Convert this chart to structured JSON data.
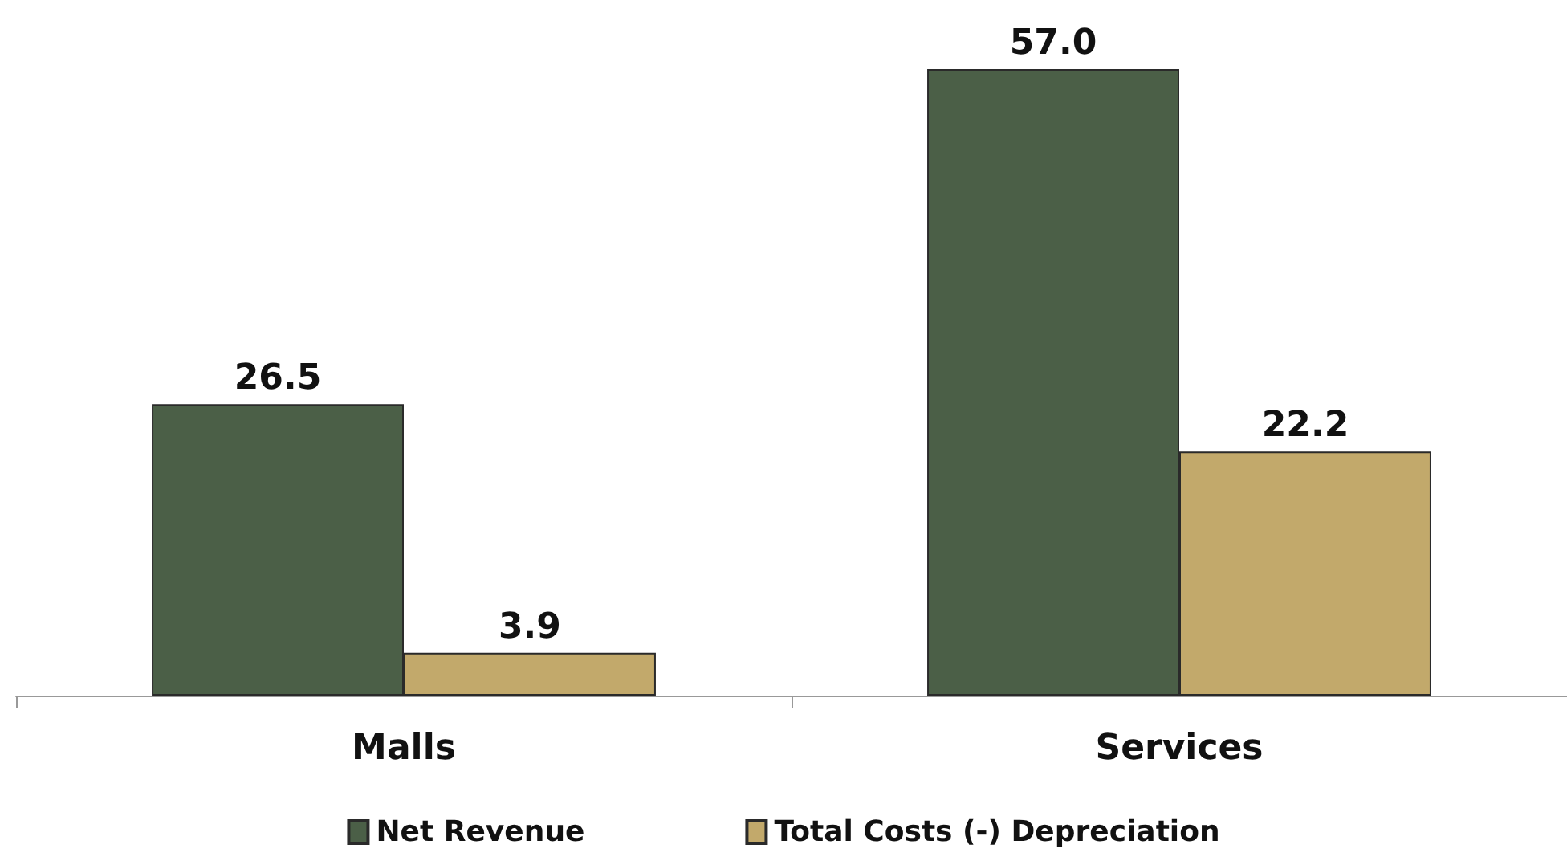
{
  "chart_data": {
    "type": "bar",
    "categories": [
      "Malls",
      "Services"
    ],
    "series": [
      {
        "name": "Net Revenue",
        "color": "#4b5f47",
        "values": [
          26.5,
          57.0
        ],
        "value_labels": [
          "26.5",
          "57.0"
        ]
      },
      {
        "name": "Total Costs (-) Depreciation",
        "color": "#c2a96b",
        "values": [
          3.9,
          22.2
        ],
        "value_labels": [
          "3.9",
          "22.2"
        ]
      }
    ],
    "legend": "bottom"
  }
}
